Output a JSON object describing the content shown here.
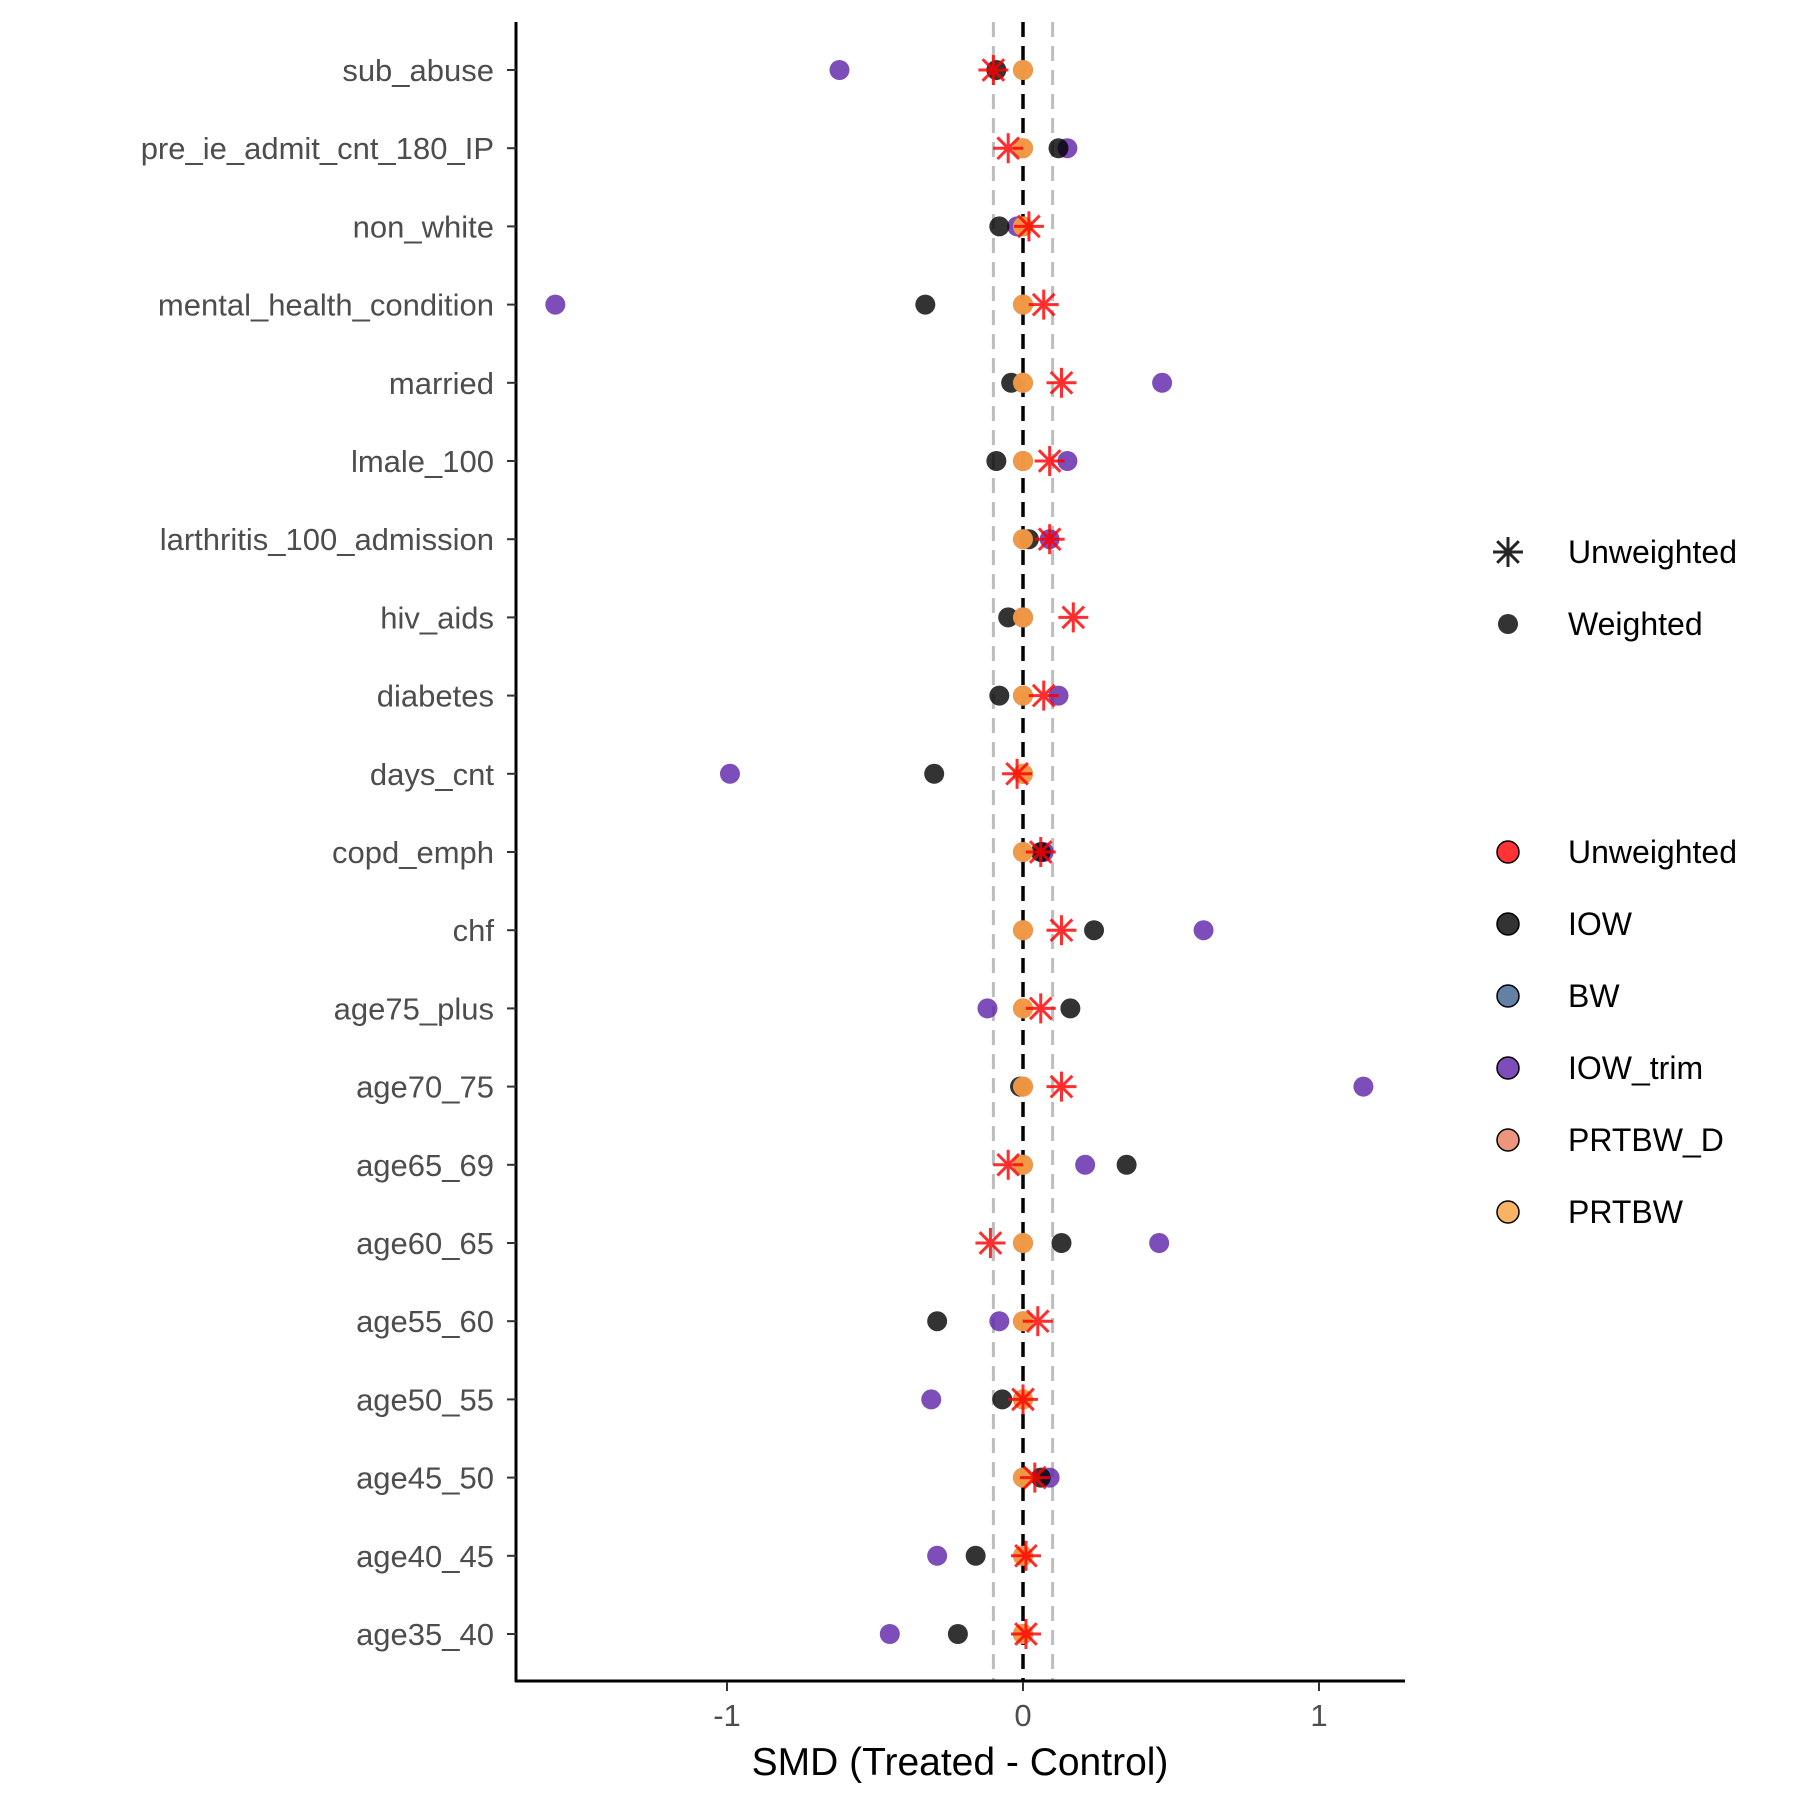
{
  "chart_data": {
    "type": "scatter",
    "title": "",
    "xlabel": "SMD (Treated - Control)",
    "ylabel": "",
    "xlim": [
      -1.72,
      1.28
    ],
    "x_ticks": [
      -1,
      0,
      1
    ],
    "x_tick_labels": [
      "-1",
      "0",
      "1"
    ],
    "reference_lines": {
      "zero": 0,
      "threshold": [
        -0.1,
        0.1
      ]
    },
    "categories": [
      "sub_abuse",
      "pre_ie_admit_cnt_180_IP",
      "non_white",
      "mental_health_condition",
      "married",
      "lmale_100",
      "larthritis_100_admission",
      "hiv_aids",
      "diabetes",
      "days_cnt",
      "copd_emph",
      "chf",
      "age75_plus",
      "age70_75",
      "age65_69",
      "age60_65",
      "age55_60",
      "age50_55",
      "age45_50",
      "age40_45",
      "age35_40"
    ],
    "series": [
      {
        "name": "IOW",
        "color": "#000000",
        "shape": "Weighted",
        "values": [
          -0.09,
          0.12,
          -0.08,
          -0.33,
          -0.04,
          -0.09,
          0.02,
          -0.05,
          -0.08,
          -0.3,
          0.06,
          0.24,
          0.16,
          -0.01,
          0.35,
          0.13,
          -0.29,
          -0.07,
          0.06,
          -0.16,
          -0.22
        ]
      },
      {
        "name": "BW",
        "color": "#3B628F",
        "shape": "Weighted",
        "values": [
          0,
          0,
          0,
          0,
          0,
          0,
          0,
          0,
          0,
          0,
          0,
          0,
          0,
          0,
          0,
          0,
          0,
          0,
          0,
          0,
          0
        ]
      },
      {
        "name": "IOW_trim",
        "color": "#5C20A8",
        "shape": "Weighted",
        "values": [
          -0.62,
          0.15,
          -0.02,
          -1.58,
          0.47,
          0.15,
          0.09,
          0,
          0.12,
          -0.99,
          0.07,
          0.61,
          -0.12,
          1.15,
          0.21,
          0.46,
          -0.08,
          -0.31,
          0.09,
          -0.29,
          -0.45
        ]
      },
      {
        "name": "PRTBW_D",
        "color": "#E87A5D",
        "shape": "Weighted",
        "values": [
          0,
          0,
          0,
          0,
          0,
          0,
          0,
          0,
          0,
          0,
          0,
          0,
          0,
          0,
          0,
          0,
          0,
          0,
          0,
          0,
          0
        ]
      },
      {
        "name": "PRTBW",
        "color": "#F9A03F",
        "shape": "Weighted",
        "values": [
          0,
          0,
          0,
          0,
          0,
          0,
          0,
          0,
          0,
          0,
          0,
          0,
          0,
          0,
          0,
          0,
          0,
          0,
          0,
          0,
          0
        ]
      },
      {
        "name": "Unweighted",
        "color": "#FF0000",
        "shape": "Unweighted",
        "values": [
          -0.1,
          -0.05,
          0.02,
          0.07,
          0.13,
          0.09,
          0.09,
          0.17,
          0.07,
          -0.02,
          0.06,
          0.13,
          0.06,
          0.13,
          -0.05,
          -0.11,
          0.05,
          0,
          0.04,
          0.01,
          0.01
        ]
      }
    ],
    "legend": {
      "placement": "right",
      "shape_items": [
        "Unweighted",
        "Weighted"
      ],
      "color_items": [
        {
          "label": "Unweighted",
          "color": "#FF0000"
        },
        {
          "label": "IOW",
          "color": "#000000"
        },
        {
          "label": "BW",
          "color": "#3B628F"
        },
        {
          "label": "IOW_trim",
          "color": "#5C20A8"
        },
        {
          "label": "PRTBW_D",
          "color": "#E87A5D"
        },
        {
          "label": "PRTBW",
          "color": "#F9A03F"
        }
      ]
    }
  }
}
